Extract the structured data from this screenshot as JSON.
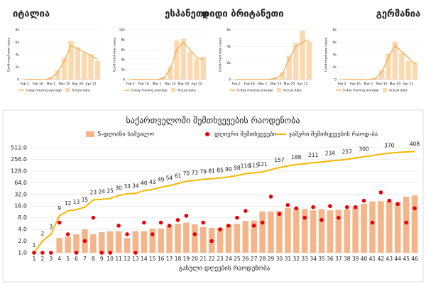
{
  "chart_data": [
    {
      "type": "mini",
      "title": "იტალია",
      "y_label": "Confirmed new cases",
      "categories": [
        "Feb 2",
        null,
        "Feb 16",
        null,
        "Mar 1",
        null,
        "Mar 15",
        null,
        "Mar 29",
        null,
        "Apr 12",
        null
      ],
      "series": [
        {
          "name": "5-day moving average",
          "color": "#f0a848",
          "values": [
            0,
            0,
            0,
            20,
            200,
            1200,
            3000,
            5500,
            5000,
            4400,
            3900,
            3200
          ]
        },
        {
          "name": "Actual data",
          "color": "#fbd9b0",
          "values": [
            0,
            0,
            0,
            60,
            300,
            1500,
            3500,
            6200,
            5200,
            4300,
            4100,
            3000
          ]
        }
      ],
      "ylim": [
        0,
        8000
      ],
      "yticks": [
        0,
        {
          "value": 2000,
          "label": "2k"
        },
        {
          "value": 4000,
          "label": "4k"
        },
        {
          "value": 6000,
          "label": "6k"
        },
        {
          "value": 8000,
          "label": "8k"
        }
      ]
    },
    {
      "type": "mini",
      "title": "ესპანეთი",
      "y_label": "Confirmed new cases",
      "categories": [
        "Feb 2",
        null,
        "Feb 16",
        null,
        "Mar 1",
        null,
        "Mar 15",
        null,
        "Mar 29",
        null,
        "Apr 12",
        null
      ],
      "series": [
        {
          "name": "5-day moving average",
          "color": "#f0a848",
          "values": [
            0,
            0,
            0,
            0,
            10,
            300,
            2000,
            6000,
            7500,
            6000,
            4500,
            4000
          ]
        },
        {
          "name": "Actual data",
          "color": "#fbd9b0",
          "values": [
            0,
            0,
            0,
            0,
            30,
            500,
            2600,
            7800,
            8200,
            5600,
            4200,
            4600
          ]
        }
      ],
      "ylim": [
        0,
        10000
      ],
      "yticks": [
        0,
        {
          "value": 2000,
          "label": "2k"
        },
        {
          "value": 4000,
          "label": "4k"
        },
        {
          "value": 6000,
          "label": "6k"
        },
        {
          "value": 8000,
          "label": "8k"
        },
        {
          "value": 10000,
          "label": "10k"
        }
      ]
    },
    {
      "type": "mini",
      "title": "დიდი ბრიტანეთი",
      "y_label": "Confirmed new cases",
      "categories": [
        "Feb 2",
        null,
        "Feb 16",
        null,
        "Mar 1",
        null,
        "Mar 15",
        null,
        "Mar 29",
        null,
        "Apr 12",
        null
      ],
      "series": [
        {
          "name": "5-day moving average",
          "color": "#f0a848",
          "values": [
            0,
            0,
            0,
            0,
            5,
            30,
            150,
            700,
            2500,
            4000,
            4500,
            4800
          ]
        },
        {
          "name": "Actual data",
          "color": "#fbd9b0",
          "values": [
            0,
            0,
            0,
            0,
            10,
            50,
            250,
            900,
            2900,
            4400,
            5900,
            4600
          ]
        }
      ],
      "ylim": [
        0,
        6000
      ],
      "yticks": [
        0,
        {
          "value": 2000,
          "label": "2k"
        },
        {
          "value": 4000,
          "label": "4k"
        },
        {
          "value": 6000,
          "label": "6k"
        }
      ]
    },
    {
      "type": "mini",
      "title": "გერმანია",
      "y_label": "Confirmed new cases",
      "categories": [
        "Feb 2",
        null,
        "Feb 16",
        null,
        "Mar 1",
        null,
        "Mar 15",
        null,
        "Mar 29",
        null,
        "Apr 12",
        null
      ],
      "series": [
        {
          "name": "5-day moving average",
          "color": "#f0a848",
          "values": [
            0,
            0,
            0,
            0,
            20,
            150,
            1200,
            3500,
            5500,
            4500,
            3500,
            2500
          ]
        },
        {
          "name": "Actual data",
          "color": "#fbd9b0",
          "values": [
            0,
            0,
            0,
            0,
            40,
            250,
            1600,
            4200,
            6100,
            4300,
            3000,
            2800
          ]
        }
      ],
      "ylim": [
        0,
        8000
      ],
      "yticks": [
        0,
        {
          "value": 2000,
          "label": "2k"
        },
        {
          "value": 4000,
          "label": "4k"
        },
        {
          "value": 6000,
          "label": "6k"
        },
        {
          "value": 8000,
          "label": "8k"
        }
      ]
    },
    {
      "type": "combo",
      "title": "საქართველოში შემთხვევების რაოდენობა",
      "x_label": "გასული დღეების რაოდენობა",
      "log_scale": true,
      "categories": [
        1,
        2,
        3,
        4,
        5,
        6,
        7,
        8,
        9,
        10,
        11,
        12,
        13,
        14,
        15,
        16,
        17,
        18,
        19,
        20,
        21,
        22,
        23,
        24,
        25,
        26,
        27,
        28,
        29,
        30,
        31,
        32,
        33,
        34,
        35,
        36,
        37,
        38,
        39,
        40,
        41,
        42,
        43,
        44,
        45,
        46
      ],
      "series": [
        {
          "name": "5-დღიანი საშუალო",
          "kind": "bar",
          "color": "#f5b58a",
          "values": [
            null,
            null,
            null,
            2.4,
            2.6,
            3,
            4,
            3,
            3.4,
            3.6,
            3.6,
            2.4,
            3.6,
            3.6,
            4.2,
            4.2,
            5,
            5.6,
            6,
            5.4,
            4.6,
            4.4,
            4.4,
            5.4,
            5.6,
            6.6,
            6.8,
            11.6,
            11.6,
            12,
            14.4,
            14,
            13.4,
            12.4,
            13.4,
            12.4,
            12.8,
            13,
            14.6,
            18.4,
            21,
            21.4,
            21.2,
            20.4,
            28,
            30
          ]
        },
        {
          "name": "დღიური შემთხვევები",
          "kind": "dot",
          "color": "#e8000b",
          "values": [
            1,
            1,
            1,
            6,
            3,
            1,
            2,
            8,
            1,
            1,
            5,
            3,
            1,
            6,
            3,
            6,
            5,
            7,
            9,
            3,
            6,
            2,
            4,
            5,
            8,
            12,
            5,
            6,
            28,
            10,
            17,
            14,
            8,
            15,
            7,
            16,
            8,
            15,
            15,
            22,
            6,
            36,
            22,
            18,
            6,
            14
          ]
        },
        {
          "name": "ჯამური შემთხვევების რაოდ-ბა",
          "kind": "line",
          "color": "#f5b800",
          "values": [
            1,
            2,
            3,
            9,
            12,
            13,
            15,
            23,
            24,
            25,
            30,
            33,
            34,
            40,
            43,
            49,
            54,
            61,
            70,
            73,
            79,
            81,
            85,
            90,
            98,
            110,
            115,
            121,
            139,
            157,
            174,
            188,
            196,
            211,
            218,
            234,
            242,
            257,
            279,
            300,
            320,
            348,
            370,
            388,
            397,
            408
          ],
          "value_labels": [
            "1",
            "2",
            "3",
            "9",
            "12",
            "13",
            "15",
            "23",
            "24",
            "25",
            "30",
            "33",
            "34",
            "40",
            "43",
            "49",
            "54",
            "61",
            "70",
            "73",
            "79",
            "81",
            "85",
            "90",
            "98",
            "110",
            "115",
            "121",
            null,
            "157",
            null,
            "188",
            null,
            "211",
            null,
            "234",
            null,
            "257",
            null,
            "300",
            null,
            null,
            "370",
            null,
            null,
            "408"
          ]
        }
      ],
      "ylim": [
        1,
        512
      ],
      "yticks": [
        {
          "value": 1,
          "label": "1.0"
        },
        {
          "value": 2,
          "label": "2.0"
        },
        {
          "value": 4,
          "label": "4.0"
        },
        {
          "value": 8,
          "label": "8.0"
        },
        {
          "value": 16,
          "label": "16.0"
        },
        {
          "value": 32,
          "label": "32.0"
        },
        {
          "value": 64,
          "label": "64.0"
        },
        {
          "value": 128,
          "label": "128.0"
        },
        {
          "value": 256,
          "label": "256.0"
        },
        {
          "value": 512,
          "label": "512.0"
        }
      ],
      "grid": true
    }
  ]
}
